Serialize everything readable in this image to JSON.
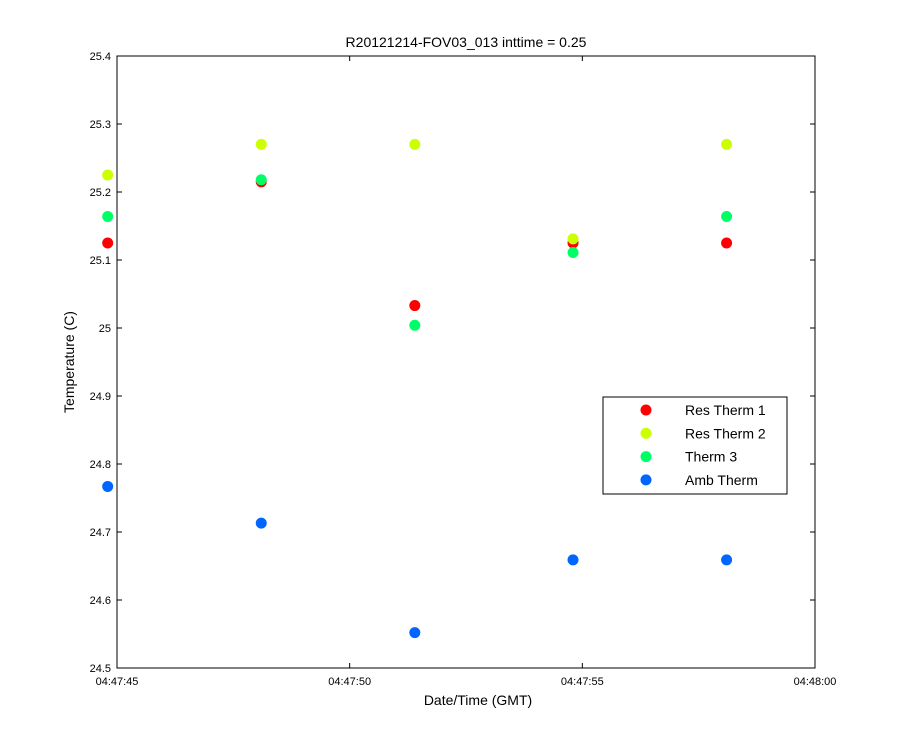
{
  "chart_data": {
    "type": "scatter",
    "title": "R20121214-FOV03_013 inttime = 0.25",
    "xlabel": "Date/Time (GMT)",
    "ylabel": "Temperature (C)",
    "xlim": [
      "04:47:45",
      "04:48:00"
    ],
    "ylim": [
      24.5,
      25.4
    ],
    "xticks": [
      "04:47:45",
      "04:47:50",
      "04:47:55",
      "04:48:00"
    ],
    "yticks": [
      "24.5",
      "24.6",
      "24.7",
      "24.8",
      "24.9",
      "25",
      "25.1",
      "25.2",
      "25.3",
      "25.4"
    ],
    "grid": false,
    "legend_position": "right",
    "x": [
      "04:47:44.8",
      "04:47:48.1",
      "04:47:51.4",
      "04:47:54.8",
      "04:47:58.1"
    ],
    "series": [
      {
        "name": "Res Therm 1",
        "color": "#ff0000",
        "values": [
          25.125,
          25.215,
          25.033,
          25.125,
          25.125
        ]
      },
      {
        "name": "Res Therm 2",
        "color": "#ccff00",
        "values": [
          25.225,
          25.27,
          25.27,
          25.131,
          25.27
        ]
      },
      {
        "name": "Therm 3",
        "color": "#00ff66",
        "values": [
          25.164,
          25.218,
          25.004,
          25.111,
          25.164
        ]
      },
      {
        "name": "Amb Therm",
        "color": "#0066ff",
        "values": [
          24.767,
          24.713,
          24.552,
          24.659,
          24.659
        ]
      }
    ]
  }
}
